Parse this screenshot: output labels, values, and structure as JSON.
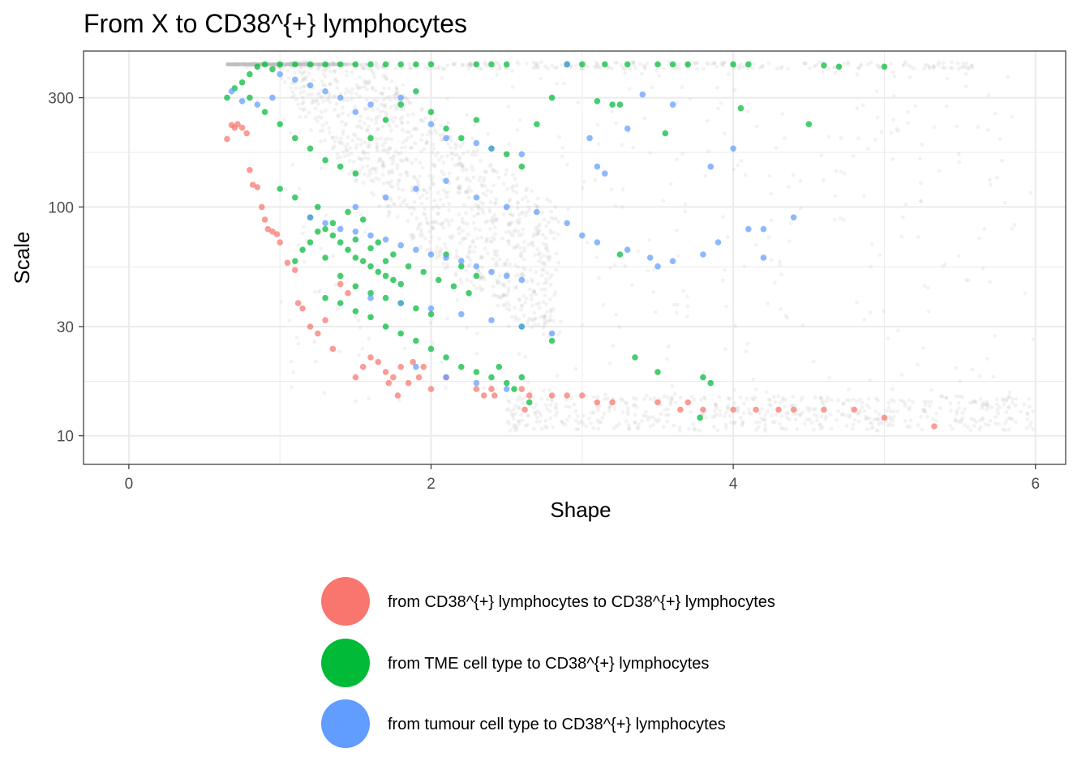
{
  "chart_data": {
    "type": "scatter",
    "title": "From X to  CD38^{+} lymphocytes",
    "xlabel": "Shape",
    "ylabel": "Scale",
    "x_ticks": [
      "0",
      "2",
      "4",
      "6"
    ],
    "y_ticks": [
      "10",
      "30",
      "100",
      "300"
    ],
    "y_scale": "log10",
    "xlim": [
      -0.3,
      6.2
    ],
    "ylim": [
      7.5,
      480
    ],
    "grid": true,
    "legend_position": "bottom",
    "background_points": {
      "color": "#bebebe",
      "description_count": 2600
    },
    "series": [
      {
        "name": "from CD38^{+} lymphocytes to CD38^{+} lymphocytes",
        "color": "#F8766D",
        "points": [
          [
            0.65,
            198
          ],
          [
            0.68,
            228
          ],
          [
            0.7,
            222
          ],
          [
            0.72,
            230
          ],
          [
            0.75,
            222
          ],
          [
            0.78,
            210
          ],
          [
            0.8,
            145
          ],
          [
            0.82,
            125
          ],
          [
            0.85,
            122
          ],
          [
            0.88,
            100
          ],
          [
            0.9,
            88
          ],
          [
            0.92,
            80
          ],
          [
            0.95,
            78
          ],
          [
            0.98,
            76
          ],
          [
            1.0,
            70
          ],
          [
            1.05,
            57
          ],
          [
            1.1,
            53
          ],
          [
            1.12,
            38
          ],
          [
            1.15,
            36
          ],
          [
            1.2,
            30
          ],
          [
            1.25,
            28
          ],
          [
            1.3,
            32
          ],
          [
            1.35,
            24
          ],
          [
            1.4,
            46
          ],
          [
            1.45,
            42
          ],
          [
            1.5,
            18
          ],
          [
            1.55,
            20
          ],
          [
            1.6,
            22
          ],
          [
            1.65,
            21
          ],
          [
            1.7,
            19
          ],
          [
            1.72,
            17
          ],
          [
            1.75,
            18
          ],
          [
            1.78,
            15
          ],
          [
            1.8,
            20
          ],
          [
            1.85,
            17
          ],
          [
            1.88,
            21
          ],
          [
            1.92,
            18
          ],
          [
            1.95,
            20
          ],
          [
            2.0,
            16
          ],
          [
            2.1,
            18
          ],
          [
            2.3,
            16
          ],
          [
            2.35,
            15
          ],
          [
            2.4,
            16
          ],
          [
            2.42,
            15
          ],
          [
            2.6,
            16
          ],
          [
            2.62,
            13
          ],
          [
            2.65,
            15
          ],
          [
            2.8,
            15
          ],
          [
            2.9,
            15
          ],
          [
            3.0,
            15
          ],
          [
            3.1,
            14
          ],
          [
            3.2,
            14
          ],
          [
            3.5,
            14
          ],
          [
            3.65,
            13
          ],
          [
            3.7,
            14
          ],
          [
            3.8,
            13
          ],
          [
            4.0,
            13
          ],
          [
            4.15,
            13
          ],
          [
            4.3,
            13
          ],
          [
            4.4,
            13
          ],
          [
            4.6,
            13
          ],
          [
            4.8,
            13
          ],
          [
            5.0,
            12
          ],
          [
            5.33,
            11
          ]
        ]
      },
      {
        "name": "from TME cell type to CD38^{+} lymphocytes",
        "color": "#00BA38",
        "points": [
          [
            0.65,
            300
          ],
          [
            0.7,
            330
          ],
          [
            0.75,
            350
          ],
          [
            0.8,
            380
          ],
          [
            0.85,
            410
          ],
          [
            0.9,
            420
          ],
          [
            0.95,
            400
          ],
          [
            1.0,
            420
          ],
          [
            1.1,
            420
          ],
          [
            1.2,
            420
          ],
          [
            1.3,
            420
          ],
          [
            1.4,
            420
          ],
          [
            1.5,
            420
          ],
          [
            1.6,
            420
          ],
          [
            1.7,
            420
          ],
          [
            1.8,
            420
          ],
          [
            1.9,
            420
          ],
          [
            2.0,
            420
          ],
          [
            2.3,
            420
          ],
          [
            2.4,
            420
          ],
          [
            2.5,
            420
          ],
          [
            2.9,
            420
          ],
          [
            3.0,
            420
          ],
          [
            3.15,
            420
          ],
          [
            3.3,
            420
          ],
          [
            3.5,
            420
          ],
          [
            3.6,
            420
          ],
          [
            3.7,
            420
          ],
          [
            4.0,
            420
          ],
          [
            4.1,
            420
          ],
          [
            4.6,
            415
          ],
          [
            4.7,
            410
          ],
          [
            5.0,
            410
          ],
          [
            0.8,
            300
          ],
          [
            0.9,
            260
          ],
          [
            1.0,
            230
          ],
          [
            1.1,
            200
          ],
          [
            1.2,
            180
          ],
          [
            1.3,
            160
          ],
          [
            1.4,
            150
          ],
          [
            1.5,
            140
          ],
          [
            1.6,
            200
          ],
          [
            1.7,
            240
          ],
          [
            1.8,
            280
          ],
          [
            1.9,
            320
          ],
          [
            2.0,
            260
          ],
          [
            2.1,
            220
          ],
          [
            2.2,
            200
          ],
          [
            2.3,
            240
          ],
          [
            2.4,
            180
          ],
          [
            2.5,
            170
          ],
          [
            2.6,
            150
          ],
          [
            2.7,
            230
          ],
          [
            2.8,
            300
          ],
          [
            3.1,
            290
          ],
          [
            3.2,
            280
          ],
          [
            3.25,
            280
          ],
          [
            3.55,
            210
          ],
          [
            4.05,
            270
          ],
          [
            4.5,
            230
          ],
          [
            1.0,
            120
          ],
          [
            1.1,
            110
          ],
          [
            1.2,
            90
          ],
          [
            1.25,
            100
          ],
          [
            1.3,
            80
          ],
          [
            1.35,
            75
          ],
          [
            1.4,
            70
          ],
          [
            1.45,
            65
          ],
          [
            1.5,
            60
          ],
          [
            1.55,
            58
          ],
          [
            1.6,
            55
          ],
          [
            1.65,
            52
          ],
          [
            1.7,
            50
          ],
          [
            1.75,
            48
          ],
          [
            1.8,
            46
          ],
          [
            1.3,
            60
          ],
          [
            1.2,
            70
          ],
          [
            1.15,
            65
          ],
          [
            1.1,
            58
          ],
          [
            1.4,
            50
          ],
          [
            1.5,
            45
          ],
          [
            1.6,
            42
          ],
          [
            1.7,
            40
          ],
          [
            1.8,
            38
          ],
          [
            1.9,
            36
          ],
          [
            2.0,
            34
          ],
          [
            1.3,
            40
          ],
          [
            1.4,
            38
          ],
          [
            1.5,
            35
          ],
          [
            1.6,
            33
          ],
          [
            1.7,
            30
          ],
          [
            1.8,
            28
          ],
          [
            1.9,
            26
          ],
          [
            2.0,
            24
          ],
          [
            2.1,
            22
          ],
          [
            2.2,
            20
          ],
          [
            2.3,
            19
          ],
          [
            2.4,
            18
          ],
          [
            2.5,
            17
          ],
          [
            2.6,
            18
          ],
          [
            3.25,
            62
          ],
          [
            3.35,
            22
          ],
          [
            3.5,
            19
          ],
          [
            3.8,
            18
          ],
          [
            3.85,
            17
          ],
          [
            3.78,
            12
          ],
          [
            1.45,
            95
          ],
          [
            1.55,
            88
          ],
          [
            1.65,
            70
          ],
          [
            1.75,
            62
          ],
          [
            1.85,
            55
          ],
          [
            1.95,
            52
          ],
          [
            2.05,
            48
          ],
          [
            2.15,
            45
          ],
          [
            2.25,
            42
          ],
          [
            1.35,
            85
          ],
          [
            1.25,
            78
          ],
          [
            1.5,
            72
          ],
          [
            1.6,
            66
          ],
          [
            1.7,
            58
          ],
          [
            2.1,
            62
          ],
          [
            2.2,
            55
          ],
          [
            2.3,
            50
          ],
          [
            2.6,
            30
          ],
          [
            2.8,
            26
          ],
          [
            2.45,
            20
          ],
          [
            2.55,
            16
          ],
          [
            2.65,
            14
          ]
        ]
      },
      {
        "name": "from tumour cell type to CD38^{+} lymphocytes",
        "color": "#619CFF",
        "points": [
          [
            0.68,
            320
          ],
          [
            0.75,
            290
          ],
          [
            0.85,
            280
          ],
          [
            0.95,
            300
          ],
          [
            1.0,
            380
          ],
          [
            1.1,
            360
          ],
          [
            1.2,
            340
          ],
          [
            1.3,
            320
          ],
          [
            1.4,
            300
          ],
          [
            1.5,
            260
          ],
          [
            1.6,
            280
          ],
          [
            1.8,
            300
          ],
          [
            2.0,
            230
          ],
          [
            2.1,
            200
          ],
          [
            2.3,
            190
          ],
          [
            2.4,
            180
          ],
          [
            2.6,
            170
          ],
          [
            2.9,
            420
          ],
          [
            3.4,
            310
          ],
          [
            3.05,
            200
          ],
          [
            3.1,
            150
          ],
          [
            3.15,
            140
          ],
          [
            3.3,
            220
          ],
          [
            3.6,
            280
          ],
          [
            3.85,
            150
          ],
          [
            4.0,
            180
          ],
          [
            4.4,
            90
          ],
          [
            4.2,
            80
          ],
          [
            1.2,
            90
          ],
          [
            1.3,
            85
          ],
          [
            1.4,
            80
          ],
          [
            1.5,
            78
          ],
          [
            1.6,
            75
          ],
          [
            1.7,
            72
          ],
          [
            1.8,
            68
          ],
          [
            1.9,
            65
          ],
          [
            2.0,
            62
          ],
          [
            2.1,
            60
          ],
          [
            2.2,
            58
          ],
          [
            2.3,
            55
          ],
          [
            2.4,
            52
          ],
          [
            2.5,
            50
          ],
          [
            2.6,
            48
          ],
          [
            1.5,
            100
          ],
          [
            1.7,
            110
          ],
          [
            1.9,
            120
          ],
          [
            2.1,
            130
          ],
          [
            2.3,
            110
          ],
          [
            2.5,
            100
          ],
          [
            2.7,
            95
          ],
          [
            2.9,
            85
          ],
          [
            3.0,
            75
          ],
          [
            3.1,
            70
          ],
          [
            3.3,
            65
          ],
          [
            3.45,
            60
          ],
          [
            3.5,
            55
          ],
          [
            3.6,
            58
          ],
          [
            3.8,
            62
          ],
          [
            3.9,
            70
          ],
          [
            4.1,
            80
          ],
          [
            4.2,
            60
          ],
          [
            1.6,
            40
          ],
          [
            1.8,
            38
          ],
          [
            2.0,
            36
          ],
          [
            2.2,
            34
          ],
          [
            2.4,
            32
          ],
          [
            2.6,
            30
          ],
          [
            2.8,
            28
          ],
          [
            1.9,
            20
          ],
          [
            2.1,
            18
          ],
          [
            2.3,
            17
          ],
          [
            2.5,
            16
          ]
        ]
      }
    ]
  }
}
